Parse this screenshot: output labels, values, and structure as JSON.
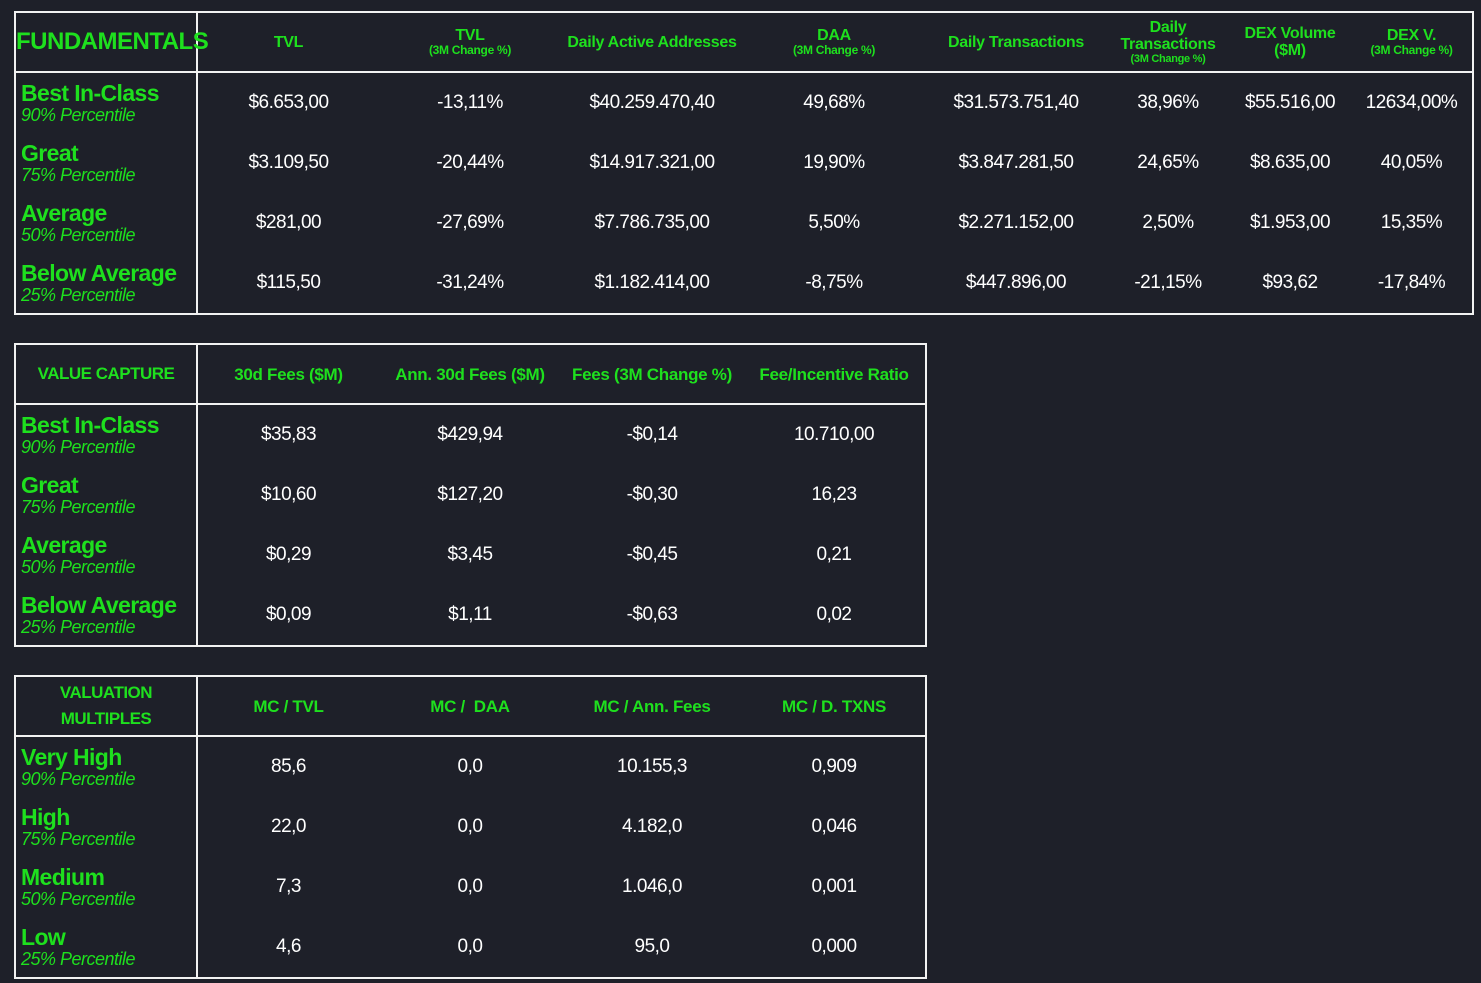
{
  "fundamentals": {
    "title": "FUNDAMENTALS",
    "columns": [
      {
        "label": "TVL",
        "sub": ""
      },
      {
        "label": "TVL",
        "sub": "(3M Change %)"
      },
      {
        "label": "Daily Active Addresses",
        "sub": ""
      },
      {
        "label": "DAA",
        "sub": "(3M Change %)"
      },
      {
        "label": "Daily Transactions",
        "sub": ""
      },
      {
        "label": "Daily Transactions",
        "sub": "(3M Change %)"
      },
      {
        "label": "DEX Volume ($M)",
        "sub": ""
      },
      {
        "label": "DEX V.",
        "sub": "(3M Change %)"
      }
    ],
    "rows": [
      {
        "label": "Best In-Class",
        "sub": "90% Percentile",
        "values": [
          "$6.653,00",
          "-13,11%",
          "$40.259.470,40",
          "49,68%",
          "$31.573.751,40",
          "38,96%",
          "$55.516,00",
          "12634,00%"
        ]
      },
      {
        "label": "Great",
        "sub": "75% Percentile",
        "values": [
          "$3.109,50",
          "-20,44%",
          "$14.917.321,00",
          "19,90%",
          "$3.847.281,50",
          "24,65%",
          "$8.635,00",
          "40,05%"
        ]
      },
      {
        "label": "Average",
        "sub": "50% Percentile",
        "values": [
          "$281,00",
          "-27,69%",
          "$7.786.735,00",
          "5,50%",
          "$2.271.152,00",
          "2,50%",
          "$1.953,00",
          "15,35%"
        ]
      },
      {
        "label": "Below Average",
        "sub": "25% Percentile",
        "values": [
          "$115,50",
          "-31,24%",
          "$1.182.414,00",
          "-8,75%",
          "$447.896,00",
          "-21,15%",
          "$93,62",
          "-17,84%"
        ]
      }
    ]
  },
  "value_capture": {
    "title": "VALUE CAPTURE",
    "columns": [
      "30d Fees ($M)",
      "Ann. 30d Fees ($M)",
      "Fees (3M Change %)",
      "Fee/Incentive Ratio"
    ],
    "rows": [
      {
        "label": "Best In-Class",
        "sub": "90% Percentile",
        "values": [
          "$35,83",
          "$429,94",
          "-$0,14",
          "10.710,00"
        ]
      },
      {
        "label": "Great",
        "sub": "75% Percentile",
        "values": [
          "$10,60",
          "$127,20",
          "-$0,30",
          "16,23"
        ]
      },
      {
        "label": "Average",
        "sub": "50% Percentile",
        "values": [
          "$0,29",
          "$3,45",
          "-$0,45",
          "0,21"
        ]
      },
      {
        "label": "Below Average",
        "sub": "25% Percentile",
        "values": [
          "$0,09",
          "$1,11",
          "-$0,63",
          "0,02"
        ]
      }
    ]
  },
  "valuation": {
    "title": "VALUATION MULTIPLES",
    "columns": [
      "MC / TVL",
      "MC /  DAA",
      "MC / Ann. Fees",
      "MC / D. TXNS"
    ],
    "rows": [
      {
        "label": "Very High",
        "sub": "90% Percentile",
        "values": [
          "85,6",
          "0,0",
          "10.155,3",
          "0,909"
        ]
      },
      {
        "label": "High",
        "sub": "75% Percentile",
        "values": [
          "22,0",
          "0,0",
          "4.182,0",
          "0,046"
        ]
      },
      {
        "label": "Medium",
        "sub": "50% Percentile",
        "values": [
          "7,3",
          "0,0",
          "1.046,0",
          "0,001"
        ]
      },
      {
        "label": "Low",
        "sub": "25% Percentile",
        "values": [
          "4,6",
          "0,0",
          "95,0",
          "0,000"
        ]
      }
    ]
  },
  "colors": {
    "background": "#1e2029",
    "accent": "#1ee01e",
    "text": "#ffffff",
    "border": "#f2f2f2"
  }
}
